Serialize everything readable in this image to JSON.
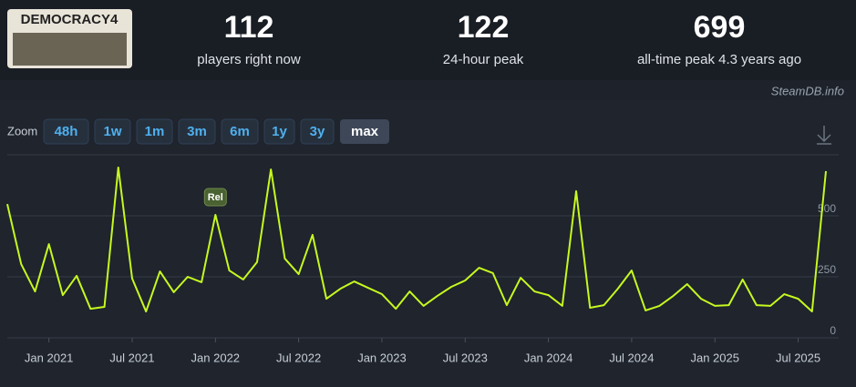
{
  "header": {
    "logo_text": "DEMOCRACY4",
    "stats": [
      {
        "value": "112",
        "label": "players right now"
      },
      {
        "value": "122",
        "label": "24-hour peak"
      },
      {
        "value": "699",
        "label": "all-time peak 4.3 years ago"
      }
    ],
    "watermark": "SteamDB.info"
  },
  "zoom": {
    "label": "Zoom",
    "buttons": [
      "48h",
      "1w",
      "1m",
      "3m",
      "6m",
      "1y",
      "3y",
      "max"
    ],
    "active": "max"
  },
  "chart_data": {
    "type": "line",
    "color": "#c6f91f",
    "x": [
      "2020-10",
      "2020-11",
      "2020-12",
      "2021-01",
      "2021-02",
      "2021-03",
      "2021-04",
      "2021-05",
      "2021-06",
      "2021-07",
      "2021-08",
      "2021-09",
      "2021-10",
      "2021-11",
      "2021-12",
      "2022-01",
      "2022-02",
      "2022-03",
      "2022-04",
      "2022-05",
      "2022-06",
      "2022-07",
      "2022-08",
      "2022-09",
      "2022-10",
      "2022-11",
      "2022-12",
      "2023-01",
      "2023-02",
      "2023-03",
      "2023-04",
      "2023-05",
      "2023-06",
      "2023-07",
      "2023-08",
      "2023-09",
      "2023-10",
      "2023-11",
      "2023-12",
      "2024-01",
      "2024-02",
      "2024-03",
      "2024-04",
      "2024-05",
      "2024-06",
      "2024-07",
      "2024-08",
      "2024-09",
      "2024-10",
      "2024-11",
      "2024-12",
      "2025-01",
      "2025-02",
      "2025-03",
      "2025-04",
      "2025-05",
      "2025-06",
      "2025-07",
      "2025-08",
      "2025-09"
    ],
    "values": [
      548,
      302,
      190,
      384,
      175,
      254,
      119,
      127,
      698,
      243,
      108,
      272,
      187,
      250,
      228,
      504,
      276,
      239,
      310,
      690,
      325,
      261,
      422,
      160,
      201,
      231,
      205,
      179,
      119,
      190,
      131,
      172,
      209,
      235,
      287,
      265,
      134,
      246,
      190,
      175,
      131,
      601,
      123,
      134,
      201,
      276,
      112,
      131,
      172,
      220,
      160,
      131,
      134,
      239,
      134,
      131,
      179,
      160,
      108,
      683
    ],
    "xlim": [
      "2020-10",
      "2025-09"
    ],
    "xticks": [
      {
        "value": "2021-01",
        "label": "Jan 2021"
      },
      {
        "value": "2021-07",
        "label": "Jul 2021"
      },
      {
        "value": "2022-01",
        "label": "Jan 2022"
      },
      {
        "value": "2022-07",
        "label": "Jul 2022"
      },
      {
        "value": "2023-01",
        "label": "Jan 2023"
      },
      {
        "value": "2023-07",
        "label": "Jul 2023"
      },
      {
        "value": "2024-01",
        "label": "Jan 2024"
      },
      {
        "value": "2024-07",
        "label": "Jul 2024"
      },
      {
        "value": "2025-01",
        "label": "Jan 2025"
      },
      {
        "value": "2025-07",
        "label": "Jul 2025"
      }
    ],
    "ylim": [
      0,
      750
    ],
    "yticks": [
      0,
      250,
      500
    ],
    "grid": true,
    "annotations": [
      {
        "x": "2022-01",
        "text": "Rel"
      }
    ]
  }
}
